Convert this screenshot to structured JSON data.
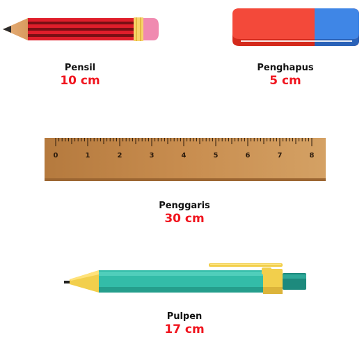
{
  "accent_color": "#f0141e",
  "items": [
    {
      "name": "Pensil",
      "length": "10 cm",
      "icon": "pencil-icon"
    },
    {
      "name": "Penghapus",
      "length": "5 cm",
      "icon": "eraser-icon"
    },
    {
      "name": "Penggaris",
      "length": "30 cm",
      "icon": "ruler-icon"
    },
    {
      "name": "Pulpen",
      "length": "17 cm",
      "icon": "pen-icon"
    }
  ],
  "ruler": {
    "numbers": [
      "0",
      "1",
      "2",
      "3",
      "4",
      "5",
      "6",
      "7",
      "8"
    ]
  }
}
